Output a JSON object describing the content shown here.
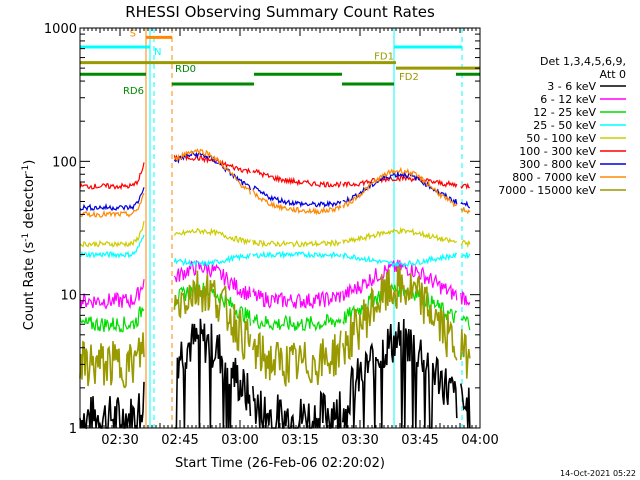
{
  "chart_data": {
    "type": "line",
    "title": "RHESSI Observing Summary Count Rates",
    "xlabel": "Start Time (26-Feb-06 02:20:02)",
    "ylabel_main": "Count Rate (s",
    "ylabel_sup1": "-1",
    "ylabel_mid": " detector",
    "ylabel_sup2": "-1",
    "ylabel_end": ")",
    "y_scale": "log",
    "ylim": [
      1,
      1000
    ],
    "xlim_minutes": [
      0,
      100
    ],
    "x_tick_labels": [
      "02:30",
      "02:45",
      "03:00",
      "03:15",
      "03:30",
      "03:45",
      "04:00"
    ],
    "x_tick_minutes": [
      10,
      25,
      40,
      55,
      70,
      85,
      100
    ],
    "y_tick_labels": [
      "1",
      "10",
      "100",
      "1000"
    ],
    "y_tick_values": [
      1,
      10,
      100,
      1000
    ],
    "legend_header_1": "Det 1,3,4,5,6,9,",
    "legend_header_2": "Att 0",
    "legend_position": "right",
    "timestamp": "14-Oct-2021 05:22",
    "series": [
      {
        "name": "3 - 6 keV",
        "color": "#000000",
        "base": 1.2,
        "peak": 4.5
      },
      {
        "name": "6 - 12 keV",
        "color": "#ff00ff",
        "base": 9,
        "peak": 16
      },
      {
        "name": "12 - 25 keV",
        "color": "#00dd00",
        "base": 6,
        "peak": 11
      },
      {
        "name": "25 - 50 keV",
        "color": "#00ffff",
        "base": 20,
        "peak": 17
      },
      {
        "name": "50 - 100 keV",
        "color": "#cccc00",
        "base": 24,
        "peak": 30
      },
      {
        "name": "100 - 300 keV",
        "color": "#ff0000",
        "base": 65,
        "peak": 75
      },
      {
        "name": "300 - 800 keV",
        "color": "#0000dd",
        "base": 45,
        "peak": 80
      },
      {
        "name": "800 - 7000 keV",
        "color": "#ff8800",
        "base": 40,
        "peak": 85
      },
      {
        "name": "7000 - 15000 keV",
        "color": "#999900",
        "base": 3,
        "peak": 11
      }
    ],
    "bars": [
      {
        "label": "S",
        "color": "#ff8800",
        "y_value": 850,
        "start": 16.5,
        "end": 23
      },
      {
        "label": "N",
        "color": "#00ffff",
        "y_value": 720,
        "start": 0,
        "end": 17.5
      },
      {
        "label": "N",
        "color": "#00ffff",
        "y_value": 720,
        "start": 78.5,
        "end": 95.5
      },
      {
        "label": "FD1",
        "color": "#999900",
        "y_value": 550,
        "start": 0,
        "end": 79
      },
      {
        "label": "FD2",
        "color": "#999900",
        "y_value": 500,
        "start": 79,
        "end": 100
      },
      {
        "label": "RD0",
        "color": "#008800",
        "y_value": 450,
        "start": 0,
        "end": 16.5
      },
      {
        "label": "RD0",
        "color": "#008800",
        "y_value": 450,
        "start": 43.5,
        "end": 65.5
      },
      {
        "label": "RD0",
        "color": "#008800",
        "y_value": 450,
        "start": 94,
        "end": 100
      },
      {
        "label": "RD6",
        "color": "#008800",
        "y_value": 380,
        "start": 23,
        "end": 43.5
      },
      {
        "label": "RD6",
        "color": "#008800",
        "y_value": 380,
        "start": 65.5,
        "end": 78.5
      }
    ],
    "bar_labels": [
      {
        "text": "S",
        "color": "#ff8800"
      },
      {
        "text": "N",
        "color": "#00ffff"
      },
      {
        "text": "FD1",
        "color": "#999900"
      },
      {
        "text": "FD2",
        "color": "#999900"
      },
      {
        "text": "RD0",
        "color": "#008800"
      },
      {
        "text": "RD6",
        "color": "#008800"
      }
    ],
    "vlines": [
      {
        "minute": 16.5,
        "color": "#ff8800",
        "dashed": false
      },
      {
        "minute": 17.5,
        "color": "#00ffff",
        "dashed": false
      },
      {
        "minute": 18.5,
        "color": "#00ffff",
        "dashed": true
      },
      {
        "minute": 23,
        "color": "#ff8800",
        "dashed": true
      },
      {
        "minute": 78.5,
        "color": "#00ffff",
        "dashed": false
      },
      {
        "minute": 95.5,
        "color": "#00ffff",
        "dashed": true
      }
    ]
  }
}
